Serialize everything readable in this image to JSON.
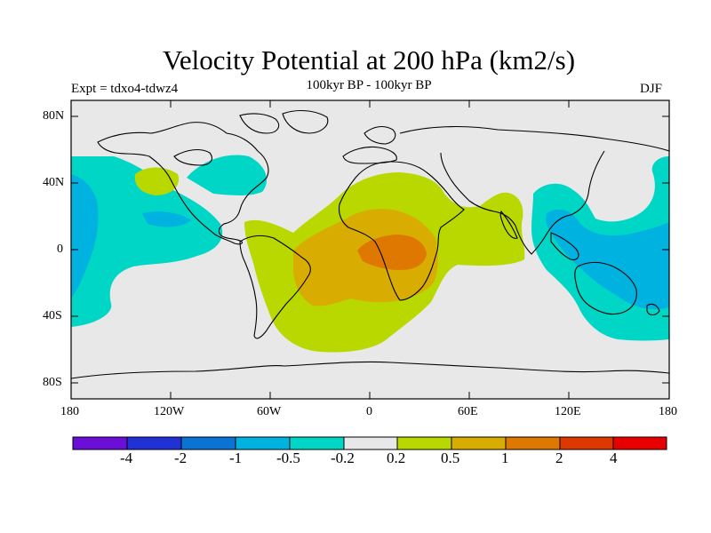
{
  "title": "Velocity Potential at 200 hPa (km2/s)",
  "subtitle": "100kyr BP - 100kyr BP",
  "left_label": "Expt = tdxo4-tdwz4",
  "right_label": "DJF",
  "lat_labels": [
    "80N",
    "40N",
    "0",
    "40S",
    "80S"
  ],
  "lon_labels": [
    "180",
    "120W",
    "60W",
    "0",
    "60E",
    "120E",
    "180"
  ],
  "colorbar": {
    "colors": [
      "#6a0ed8",
      "#2032d6",
      "#0b73d4",
      "#00b2e0",
      "#00d6c6",
      "#e8e8e8",
      "#b8d800",
      "#d8ac00",
      "#de7800",
      "#dc3800",
      "#e80000"
    ],
    "labels": [
      "-4",
      "-2",
      "-1",
      "-0.5",
      "-0.2",
      "0.2",
      "0.5",
      "1",
      "2",
      "4"
    ]
  },
  "map_colors": {
    "ocean_land_background": "#e8e8e8",
    "negative_light": "#00d6c6",
    "negative_mid": "#00b2e0",
    "positive_light": "#b8d800",
    "positive_mid": "#d8ac00",
    "positive_high": "#de7800"
  }
}
